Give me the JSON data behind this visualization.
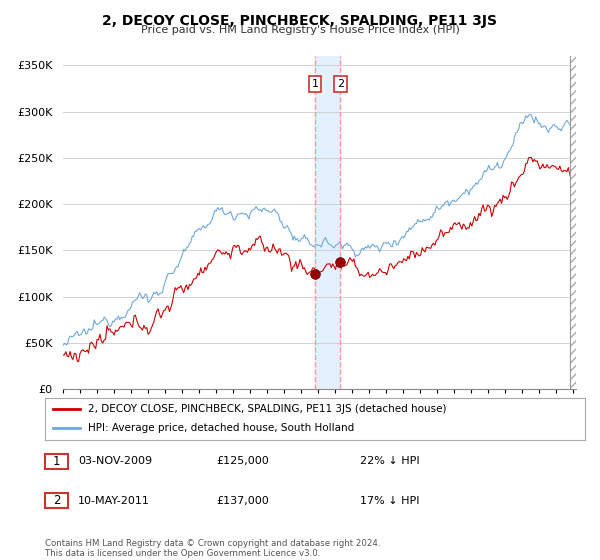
{
  "title": "2, DECOY CLOSE, PINCHBECK, SPALDING, PE11 3JS",
  "subtitle": "Price paid vs. HM Land Registry's House Price Index (HPI)",
  "legend_line1": "2, DECOY CLOSE, PINCHBECK, SPALDING, PE11 3JS (detached house)",
  "legend_line2": "HPI: Average price, detached house, South Holland",
  "transaction1_date": "03-NOV-2009",
  "transaction1_price": "£125,000",
  "transaction1_hpi": "22% ↓ HPI",
  "transaction2_date": "10-MAY-2011",
  "transaction2_price": "£137,000",
  "transaction2_hpi": "17% ↓ HPI",
  "footer": "Contains HM Land Registry data © Crown copyright and database right 2024.\nThis data is licensed under the Open Government Licence v3.0.",
  "hpi_color": "#6fa8dc",
  "price_color": "#cc0000",
  "vline_color": "#ff9999",
  "background_color": "#ffffff",
  "grid_color": "#cccccc",
  "ylim": [
    0,
    360000
  ],
  "yticks": [
    0,
    50000,
    100000,
    150000,
    200000,
    250000,
    300000,
    350000
  ],
  "year_start": 1995,
  "year_end": 2025
}
